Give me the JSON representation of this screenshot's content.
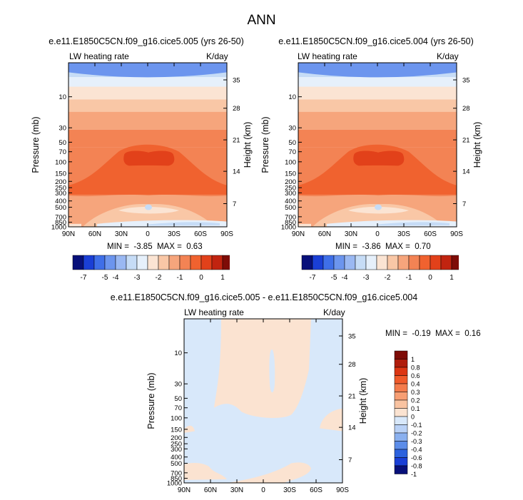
{
  "figure_title": "ANN",
  "panels": [
    {
      "title": "e.e11.E1850C5CN.f09_g16.cice5.005 (yrs 26-50)",
      "left_label": "LW heating rate",
      "right_label": "K/day",
      "ylabel_left": "Pressure (mb)",
      "ylabel_right": "Height (km)",
      "stats": "MIN =  -3.85  MAX =  0.63"
    },
    {
      "title": "e.e11.E1850C5CN.f09_g16.cice5.004 (yrs 26-50)",
      "left_label": "LW heating rate",
      "right_label": "K/day",
      "ylabel_left": "Pressure (mb)",
      "ylabel_right": "Height (km)",
      "stats": "MIN =  -3.86  MAX =  0.70"
    },
    {
      "title": "e.e11.E1850C5CN.f09_g16.cice5.005 - e.e11.E1850C5CN.f09_g16.cice5.004",
      "left_label": "LW heating rate",
      "right_label": "K/day",
      "ylabel_left": "Pressure (mb)",
      "ylabel_right": "Height (km)",
      "stats": "MIN =  -0.19  MAX =  0.16"
    }
  ],
  "chart_data": [
    {
      "type": "heatmap",
      "title": "e.e11.E1850C5CN.f09_g16.cice5.005 (yrs 26-50)",
      "xlabel": "",
      "ylabel": "Pressure (mb)",
      "y2label": "Height (km)",
      "x_ticks": [
        "90N",
        "60N",
        "30N",
        "0",
        "30S",
        "60S",
        "90S"
      ],
      "y_ticks": [
        "10",
        "30",
        "50",
        "70",
        "100",
        "150",
        "200",
        "250",
        "300",
        "400",
        "500",
        "700",
        "850",
        "1000"
      ],
      "y2_ticks": [
        "35",
        "28",
        "21",
        "14",
        "7"
      ],
      "yscale": "log",
      "ylim": [
        1000,
        3
      ],
      "min": -3.85,
      "max": 0.63,
      "colorbar_ticks": [
        "-7",
        "-5",
        "-4",
        "-3",
        "-2",
        "-1",
        "0",
        "1"
      ],
      "units": "K/day"
    },
    {
      "type": "heatmap",
      "title": "e.e11.E1850C5CN.f09_g16.cice5.004 (yrs 26-50)",
      "xlabel": "",
      "ylabel": "Pressure (mb)",
      "y2label": "Height (km)",
      "x_ticks": [
        "90N",
        "60N",
        "30N",
        "0",
        "30S",
        "60S",
        "90S"
      ],
      "y_ticks": [
        "10",
        "30",
        "50",
        "70",
        "100",
        "150",
        "200",
        "250",
        "300",
        "400",
        "500",
        "700",
        "850",
        "1000"
      ],
      "y2_ticks": [
        "35",
        "28",
        "21",
        "14",
        "7"
      ],
      "yscale": "log",
      "ylim": [
        1000,
        3
      ],
      "min": -3.86,
      "max": 0.7,
      "colorbar_ticks": [
        "-7",
        "-5",
        "-4",
        "-3",
        "-2",
        "-1",
        "0",
        "1"
      ],
      "units": "K/day"
    },
    {
      "type": "heatmap",
      "title": "e.e11.E1850C5CN.f09_g16.cice5.005 - e.e11.E1850C5CN.f09_g16.cice5.004",
      "xlabel": "",
      "ylabel": "Pressure (mb)",
      "y2label": "Height (km)",
      "x_ticks": [
        "90N",
        "60N",
        "30N",
        "0",
        "30S",
        "60S",
        "90S"
      ],
      "y_ticks": [
        "10",
        "30",
        "50",
        "70",
        "100",
        "150",
        "200",
        "250",
        "300",
        "400",
        "500",
        "700",
        "850",
        "1000"
      ],
      "y2_ticks": [
        "35",
        "28",
        "21",
        "14",
        "7"
      ],
      "yscale": "log",
      "ylim": [
        1000,
        3
      ],
      "min": -0.19,
      "max": 0.16,
      "colorbar_ticks": [
        "1",
        "0.8",
        "0.6",
        "0.4",
        "0.3",
        "0.2",
        "0.1",
        "0",
        "-0.1",
        "-0.2",
        "-0.3",
        "-0.4",
        "-0.6",
        "-0.8",
        "-1"
      ],
      "units": "K/day"
    }
  ],
  "colors": {
    "main_scale": [
      "#08107a",
      "#1a3fd6",
      "#3f6fe8",
      "#6c95ee",
      "#9ab8f2",
      "#c6dcf6",
      "#e6f0fb",
      "#fbe4d3",
      "#f9c7a6",
      "#f6a57c",
      "#f38354",
      "#f0622f",
      "#e2411a",
      "#c12410",
      "#7e0c07"
    ],
    "diff_scale": [
      "#7e0c07",
      "#b01d0c",
      "#dc3613",
      "#f05a2a",
      "#f47b4b",
      "#f79e73",
      "#f9c3a1",
      "#fbe3d1",
      "#d8e8fa",
      "#b9d1f6",
      "#8ab0ef",
      "#5c8de9",
      "#2c62de",
      "#1a3fd6",
      "#08107a"
    ]
  }
}
